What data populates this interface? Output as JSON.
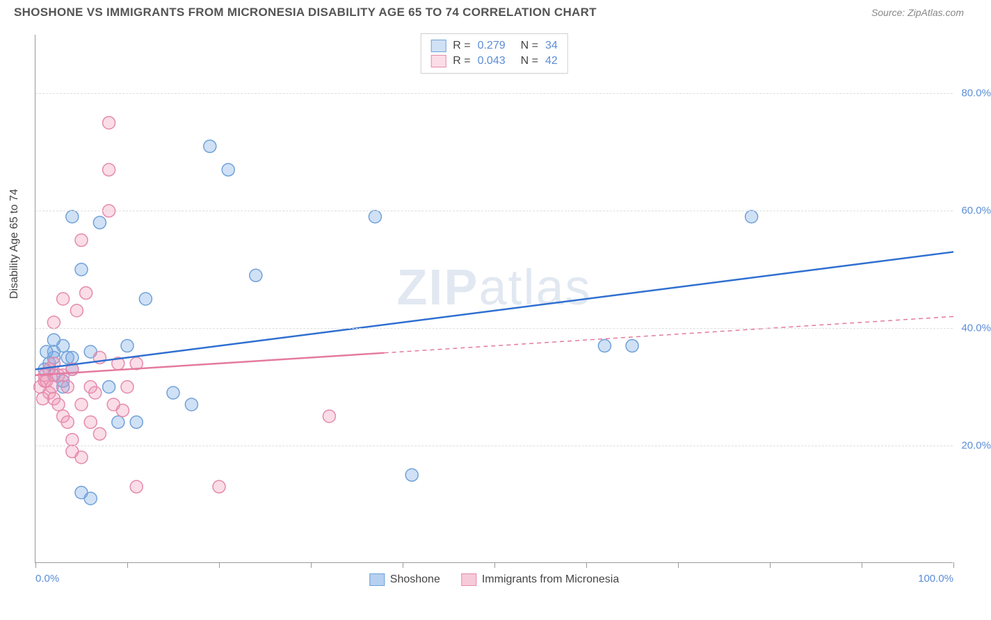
{
  "title": "SHOSHONE VS IMMIGRANTS FROM MICRONESIA DISABILITY AGE 65 TO 74 CORRELATION CHART",
  "source": "Source: ZipAtlas.com",
  "ylabel": "Disability Age 65 to 74",
  "watermark": {
    "zip": "ZIP",
    "atlas": "atlas"
  },
  "chart": {
    "type": "scatter",
    "xlim": [
      0,
      100
    ],
    "ylim": [
      0,
      90
    ],
    "xticks": [
      0,
      10,
      20,
      30,
      40,
      50,
      60,
      70,
      80,
      90,
      100
    ],
    "xtick_labels": {
      "0": "0.0%",
      "100": "100.0%"
    },
    "yticks": [
      20,
      40,
      60,
      80
    ],
    "ytick_labels": [
      "20.0%",
      "40.0%",
      "60.0%",
      "80.0%"
    ],
    "background_color": "#ffffff",
    "grid_color": "#dddddd",
    "axis_color": "#999999",
    "marker_radius": 9,
    "marker_stroke_width": 1.5,
    "trend_line_width": 2.5
  },
  "series": [
    {
      "name": "Shoshone",
      "color_fill": "rgba(120,170,230,0.35)",
      "color_stroke": "#6fa1d8",
      "trend_color": "#2f6fd0",
      "trend_dash": "",
      "trend": {
        "x1": 0,
        "y1": 33,
        "x2": 100,
        "y2": 53
      },
      "R": "0.279",
      "N": "34",
      "points": [
        [
          1.5,
          34
        ],
        [
          2,
          36
        ],
        [
          3,
          37
        ],
        [
          3.5,
          35
        ],
        [
          4,
          59
        ],
        [
          5,
          50
        ],
        [
          6,
          36
        ],
        [
          7,
          58
        ],
        [
          8,
          30
        ],
        [
          9,
          24
        ],
        [
          10,
          37
        ],
        [
          11,
          24
        ],
        [
          12,
          45
        ],
        [
          15,
          29
        ],
        [
          17,
          27
        ],
        [
          19,
          71
        ],
        [
          21,
          67
        ],
        [
          24,
          49
        ],
        [
          37,
          59
        ],
        [
          41,
          15
        ],
        [
          62,
          37
        ],
        [
          65,
          37
        ],
        [
          78,
          59
        ],
        [
          2,
          32
        ],
        [
          3,
          30
        ],
        [
          4,
          33
        ],
        [
          5,
          12
        ],
        [
          6,
          11
        ],
        [
          4,
          35
        ],
        [
          2,
          38
        ],
        [
          1,
          33
        ],
        [
          2,
          35
        ],
        [
          3,
          31
        ],
        [
          1.2,
          36
        ]
      ]
    },
    {
      "name": "Immigrants from Micronesia",
      "color_fill": "rgba(240,150,180,0.32)",
      "color_stroke": "#e58aac",
      "trend_color": "#e47aa0",
      "trend_dash": "6,5",
      "trend_solid_until_x": 38,
      "trend": {
        "x1": 0,
        "y1": 32,
        "x2": 100,
        "y2": 42
      },
      "R": "0.043",
      "N": "42",
      "points": [
        [
          0.5,
          30
        ],
        [
          1,
          31
        ],
        [
          1,
          32
        ],
        [
          1.5,
          33
        ],
        [
          1.5,
          29
        ],
        [
          2,
          28
        ],
        [
          2,
          34
        ],
        [
          2,
          41
        ],
        [
          2.5,
          27
        ],
        [
          2.5,
          32
        ],
        [
          3,
          25
        ],
        [
          3,
          45
        ],
        [
          3,
          32
        ],
        [
          3.5,
          24
        ],
        [
          3.5,
          30
        ],
        [
          4,
          21
        ],
        [
          4,
          19
        ],
        [
          4,
          33
        ],
        [
          4.5,
          43
        ],
        [
          5,
          18
        ],
        [
          5,
          55
        ],
        [
          5,
          27
        ],
        [
          5.5,
          46
        ],
        [
          6,
          30
        ],
        [
          6,
          24
        ],
        [
          6.5,
          29
        ],
        [
          7,
          22
        ],
        [
          7,
          35
        ],
        [
          8,
          60
        ],
        [
          8,
          67
        ],
        [
          8,
          75
        ],
        [
          8.5,
          27
        ],
        [
          9,
          34
        ],
        [
          9.5,
          26
        ],
        [
          10,
          30
        ],
        [
          11,
          13
        ],
        [
          11,
          34
        ],
        [
          20,
          13
        ],
        [
          32,
          25
        ],
        [
          0.8,
          28
        ],
        [
          1.2,
          31
        ],
        [
          1.8,
          30
        ]
      ]
    }
  ],
  "legend_top": {
    "r_label": "R  =",
    "n_label": "N  ="
  },
  "legend_bottom": [
    {
      "label": "Shoshone",
      "swatch_fill": "rgba(120,170,230,0.55)",
      "swatch_stroke": "#6fa1d8"
    },
    {
      "label": "Immigrants from Micronesia",
      "swatch_fill": "rgba(240,150,180,0.5)",
      "swatch_stroke": "#e58aac"
    }
  ]
}
